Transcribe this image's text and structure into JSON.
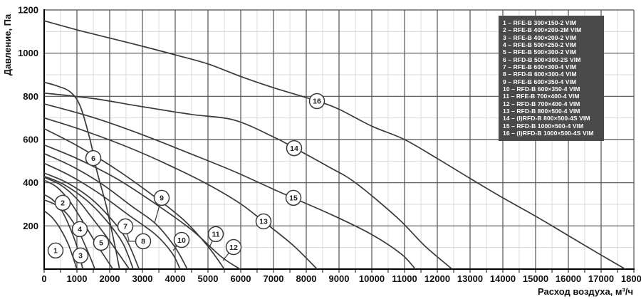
{
  "colors": {
    "background": "#ffffff",
    "curve": "#3a3a3a",
    "grid_major": "#4f4f4f",
    "grid_minor": "#d9d9d9",
    "axis": "#000000",
    "tick_text": "#111111",
    "legend_bg": "#4a4a4a",
    "legend_text": "#ffffff",
    "marker_fill": "#ffffff",
    "marker_stroke": "#3a3a3a"
  },
  "chart_data": {
    "type": "line",
    "title": "",
    "xlabel": "Расход воздуха, м³/ч",
    "ylabel": "Давление, Па",
    "xlim": [
      0,
      18000
    ],
    "ylim": [
      0,
      1200
    ],
    "x_tick_step": 1000,
    "x_minor_step": 500,
    "y_tick_step": 200,
    "y_minor_step": 100,
    "x_ticks": [
      0,
      1000,
      2000,
      3000,
      4000,
      5000,
      6000,
      7000,
      8000,
      9000,
      10000,
      11000,
      12000,
      13000,
      14000,
      15000,
      16000,
      17000,
      18000
    ],
    "y_ticks": [
      200,
      400,
      600,
      800,
      1000,
      1200
    ],
    "grid": "major+minor",
    "legend_position": "top-right",
    "series": [
      {
        "num": 1,
        "label": "1 – RFE-B 300×150-2 VIM",
        "points": [
          [
            0,
            270
          ],
          [
            250,
            238
          ],
          [
            500,
            185
          ],
          [
            750,
            110
          ],
          [
            1000,
            0
          ]
        ],
        "marker": {
          "q": 348,
          "p": 86
        },
        "leader": null
      },
      {
        "num": 2,
        "label": "2 – RFE-B 400×200-2M VIM",
        "points": [
          [
            0,
            345
          ],
          [
            250,
            322
          ],
          [
            500,
            280
          ],
          [
            750,
            205
          ],
          [
            1000,
            105
          ],
          [
            1180,
            0
          ]
        ],
        "marker": {
          "q": 565,
          "p": 307
        },
        "leader": null
      },
      {
        "num": 3,
        "label": "3 – RFE-B 400×200-2 VIM",
        "points": [
          [
            0,
            320
          ],
          [
            350,
            298
          ],
          [
            700,
            255
          ],
          [
            1050,
            175
          ],
          [
            1350,
            75
          ],
          [
            1550,
            0
          ]
        ],
        "marker": {
          "q": 1109,
          "p": 63
        },
        "leader": null
      },
      {
        "num": 4,
        "label": "4 – RFE-B 500×250-2 VIM",
        "points": [
          [
            0,
            412
          ],
          [
            400,
            378
          ],
          [
            800,
            310
          ],
          [
            1200,
            215
          ],
          [
            1600,
            115
          ],
          [
            2100,
            0
          ]
        ],
        "marker": {
          "q": 1087,
          "p": 185
        },
        "leader": null
      },
      {
        "num": 5,
        "label": "5 – RFE-B 500×300-2 VIM",
        "points": [
          [
            0,
            425
          ],
          [
            500,
            390
          ],
          [
            1000,
            325
          ],
          [
            1500,
            230
          ],
          [
            2000,
            130
          ],
          [
            2600,
            0
          ]
        ],
        "marker": {
          "q": 1739,
          "p": 122
        },
        "leader": null
      },
      {
        "num": 6,
        "label": "6 – RFD-B 500×300-2S VIM",
        "points": [
          [
            0,
            865
          ],
          [
            400,
            848
          ],
          [
            800,
            820
          ],
          [
            1100,
            755
          ],
          [
            1400,
            600
          ],
          [
            1600,
            460
          ],
          [
            1900,
            290
          ],
          [
            2150,
            115
          ],
          [
            2300,
            0
          ]
        ],
        "marker": {
          "q": 1500,
          "p": 514
        },
        "leader": null
      },
      {
        "num": 7,
        "label": "7 – RFE-B 600×300-4 VIM",
        "points": [
          [
            0,
            445
          ],
          [
            700,
            400
          ],
          [
            1400,
            330
          ],
          [
            2000,
            240
          ],
          [
            2500,
            140
          ],
          [
            2900,
            0
          ]
        ],
        "marker": {
          "q": 2478,
          "p": 198
        },
        "leader": {
          "q": 2590,
          "p": 132
        }
      },
      {
        "num": 8,
        "label": "8 – RFD-B 600×300-4 VIM",
        "points": [
          [
            0,
            430
          ],
          [
            600,
            392
          ],
          [
            1300,
            318
          ],
          [
            1900,
            225
          ],
          [
            2400,
            120
          ],
          [
            2720,
            0
          ]
        ],
        "marker": {
          "q": 3022,
          "p": 129
        },
        "leader": {
          "q": 2543,
          "p": 129
        }
      },
      {
        "num": 9,
        "label": "9 – RFE-B 600×350-4 VIM",
        "points": [
          [
            0,
            535
          ],
          [
            900,
            472
          ],
          [
            1800,
            390
          ],
          [
            2700,
            288
          ],
          [
            3400,
            210
          ],
          [
            4000,
            100
          ],
          [
            4370,
            0
          ]
        ],
        "marker": {
          "q": 3587,
          "p": 330
        },
        "leader": {
          "q": 3370,
          "p": 214
        }
      },
      {
        "num": 10,
        "label": "10 – RFD-B 600×350-4 VIM",
        "points": [
          [
            0,
            490
          ],
          [
            800,
            432
          ],
          [
            1700,
            348
          ],
          [
            2600,
            248
          ],
          [
            3400,
            160
          ],
          [
            3900,
            75
          ],
          [
            4150,
            0
          ]
        ],
        "marker": {
          "q": 4196,
          "p": 135
        },
        "leader": {
          "q": 3935,
          "p": 86
        }
      },
      {
        "num": 11,
        "label": "11 – RFE-B 700×400-4 VIM",
        "points": [
          [
            0,
            650
          ],
          [
            1000,
            572
          ],
          [
            2200,
            462
          ],
          [
            3400,
            332
          ],
          [
            4300,
            222
          ],
          [
            5000,
            105
          ],
          [
            5500,
            0
          ]
        ],
        "marker": {
          "q": 5239,
          "p": 162
        },
        "leader": {
          "q": 5022,
          "p": 96
        }
      },
      {
        "num": 12,
        "label": "12 – RFD-B 700×400-4 VIM",
        "points": [
          [
            0,
            575
          ],
          [
            1000,
            512
          ],
          [
            2200,
            420
          ],
          [
            3400,
            302
          ],
          [
            4500,
            182
          ],
          [
            5400,
            58
          ],
          [
            5980,
            0
          ]
        ],
        "marker": {
          "q": 5783,
          "p": 102
        },
        "leader": {
          "q": 5457,
          "p": 40
        }
      },
      {
        "num": 13,
        "label": "13 – RFD-B 800×500-4 VIM",
        "points": [
          [
            0,
            700
          ],
          [
            1200,
            642
          ],
          [
            2600,
            562
          ],
          [
            3800,
            482
          ],
          [
            5000,
            392
          ],
          [
            6000,
            302
          ],
          [
            6700,
            220
          ],
          [
            7600,
            110
          ],
          [
            8330,
            0
          ]
        ],
        "marker": {
          "q": 6696,
          "p": 221
        },
        "leader": null
      },
      {
        "num": 14,
        "label": "14 – (I)RFD-B 800×500-4S VIM",
        "points": [
          [
            0,
            815
          ],
          [
            1500,
            790
          ],
          [
            3000,
            752
          ],
          [
            4500,
            716
          ],
          [
            5800,
            690
          ],
          [
            7000,
            612
          ],
          [
            7650,
            560
          ],
          [
            8700,
            472
          ],
          [
            9500,
            400
          ],
          [
            10800,
            235
          ],
          [
            11600,
            110
          ],
          [
            12450,
            0
          ]
        ],
        "marker": {
          "q": 7630,
          "p": 560
        },
        "leader": null
      },
      {
        "num": 15,
        "label": "15 – RFD-B 1000×500-4 VIM",
        "points": [
          [
            0,
            765
          ],
          [
            1500,
            702
          ],
          [
            3000,
            622
          ],
          [
            4500,
            532
          ],
          [
            5800,
            452
          ],
          [
            7200,
            356
          ],
          [
            8800,
            250
          ],
          [
            10000,
            160
          ],
          [
            10900,
            70
          ],
          [
            11330,
            0
          ]
        ],
        "marker": {
          "q": 7609,
          "p": 330
        },
        "leader": null
      },
      {
        "num": 16,
        "label": "16 – (I)RFD-B 1000×500-4S VIM",
        "points": [
          [
            0,
            1150
          ],
          [
            1000,
            1108
          ],
          [
            2000,
            1070
          ],
          [
            3000,
            1032
          ],
          [
            4000,
            992
          ],
          [
            5000,
            950
          ],
          [
            6000,
            892
          ],
          [
            7000,
            840
          ],
          [
            8300,
            780
          ],
          [
            9000,
            740
          ],
          [
            10000,
            662
          ],
          [
            11000,
            600
          ],
          [
            12000,
            512
          ],
          [
            13000,
            420
          ],
          [
            14000,
            330
          ],
          [
            15000,
            245
          ],
          [
            16000,
            155
          ],
          [
            17000,
            65
          ],
          [
            17740,
            0
          ]
        ],
        "marker": {
          "q": 8326,
          "p": 778
        },
        "leader": null
      }
    ]
  }
}
